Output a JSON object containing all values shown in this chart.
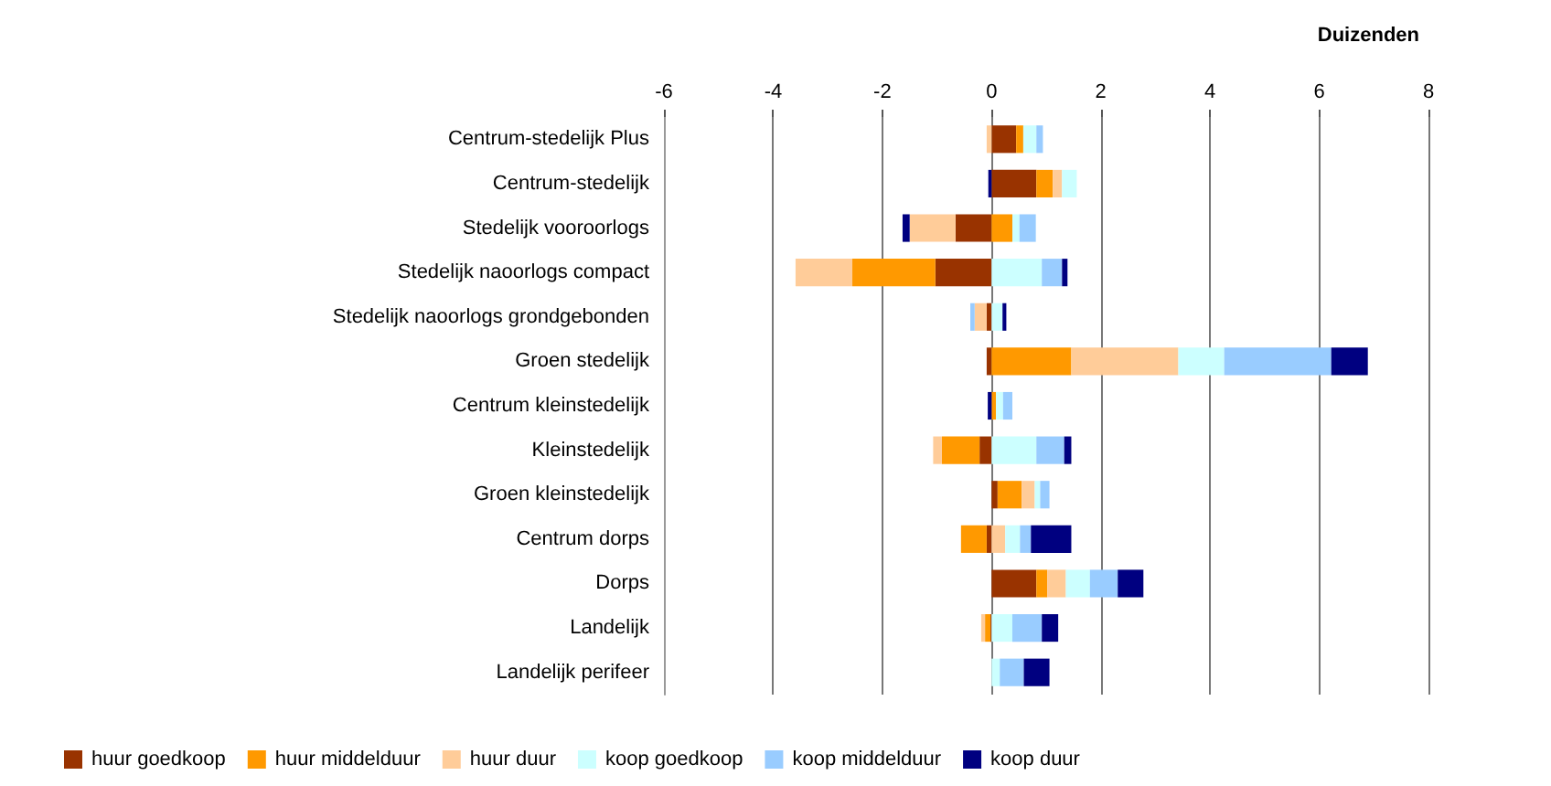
{
  "chart_data": {
    "type": "bar",
    "orientation": "horizontal",
    "stacked": true,
    "xlabel": "Duizenden",
    "categories": [
      "Centrum-stedelijk Plus",
      "Centrum-stedelijk",
      "Stedelijk vooroorlogs",
      "Stedelijk naoorlogs compact",
      "Stedelijk naoorlogs grondgebonden",
      "Groen stedelijk",
      "Centrum kleinstedelijk",
      "Kleinstedelijk",
      "Groen kleinstedelijk",
      "Centrum dorps",
      "Dorps",
      "Landelijk",
      "Landelijk perifeer"
    ],
    "series": [
      {
        "name": "huur goedkoop",
        "color": "#993300",
        "values": [
          0.45,
          0.82,
          -0.66,
          -1.03,
          -0.09,
          -0.09,
          0,
          -0.22,
          0.11,
          -0.09,
          0.82,
          -0.02,
          0
        ]
      },
      {
        "name": "huur middelduur",
        "color": "#ff9900",
        "values": [
          0.13,
          0.3,
          0.38,
          -1.52,
          0,
          1.46,
          0.08,
          -0.69,
          0.44,
          -0.47,
          0.2,
          -0.1,
          0
        ]
      },
      {
        "name": "huur duur",
        "color": "#ffcc99",
        "values": [
          -0.09,
          0.17,
          -0.84,
          -1.04,
          -0.22,
          1.96,
          0,
          -0.16,
          0.24,
          0.25,
          0.34,
          -0.07,
          0
        ]
      },
      {
        "name": "koop goedkoop",
        "color": "#ccffff",
        "values": [
          0.24,
          0.27,
          0.13,
          0.92,
          0.2,
          0.84,
          0.13,
          0.82,
          0.1,
          0.27,
          0.44,
          0.38,
          0.15
        ]
      },
      {
        "name": "koop middelduur",
        "color": "#99ccff",
        "values": [
          0.12,
          0,
          0.3,
          0.37,
          -0.08,
          1.96,
          0.17,
          0.51,
          0.17,
          0.2,
          0.51,
          0.54,
          0.44
        ]
      },
      {
        "name": "koop duur",
        "color": "#000080",
        "values": [
          0,
          -0.06,
          -0.13,
          0.1,
          0.07,
          0.67,
          -0.07,
          0.13,
          0,
          0.74,
          0.47,
          0.3,
          0.47
        ]
      }
    ],
    "xlim": [
      -6,
      8
    ],
    "xticks": [
      -6,
      -4,
      -2,
      0,
      2,
      4,
      6,
      8
    ],
    "grid": "x",
    "legend": "bottom"
  }
}
